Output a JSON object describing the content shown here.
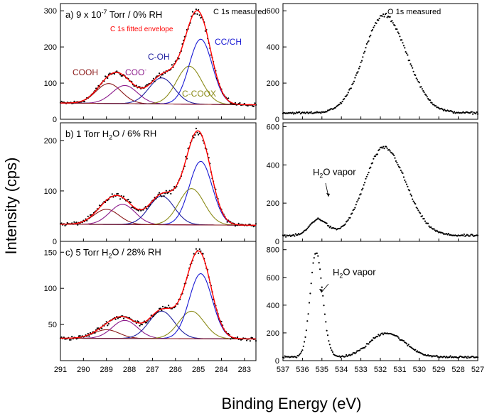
{
  "figure": {
    "xlabel": "Binding Energy (eV)",
    "ylabel": "Intensity (cps)"
  },
  "chart_data": [
    {
      "type": "line",
      "id": "c1s-a",
      "panel_label": "a) 9 x 10",
      "panel_label_sup": "-7",
      "panel_label_tail": " Torr / 0% RH",
      "xlim": [
        291,
        282.5
      ],
      "ylim": [
        0,
        320
      ],
      "yticks": [
        0,
        100,
        200,
        300
      ],
      "annotations": {
        "measured": "C 1s measured",
        "envelope": "C 1s fitted envelope"
      },
      "peaks": [
        {
          "name": "COOH",
          "center": 288.9,
          "height": 55,
          "sigma": 0.55,
          "color": "#8b1a1a"
        },
        {
          "name": "COO",
          "label_sup": "-",
          "center": 288.2,
          "height": 50,
          "sigma": 0.55,
          "color": "#8b1a8b"
        },
        {
          "name": "C-OH",
          "center": 286.6,
          "height": 72,
          "sigma": 0.55,
          "color": "#1f1f9f"
        },
        {
          "name": "C-COOX",
          "center": 285.4,
          "height": 105,
          "sigma": 0.55,
          "color": "#8c8c1a"
        },
        {
          "name": "CC/CH",
          "center": 284.9,
          "height": 180,
          "sigma": 0.5,
          "color": "#1a1ad4"
        }
      ],
      "baseline": {
        "left": 45,
        "right": 40
      },
      "envelope_color": "#ff0000"
    },
    {
      "type": "line",
      "id": "c1s-b",
      "panel_label": "b) 1 Torr H",
      "panel_label_sub": "2",
      "panel_label_tail": "O / 6% RH",
      "xlim": [
        291,
        282.5
      ],
      "ylim": [
        0,
        235
      ],
      "yticks": [
        0,
        100,
        200
      ],
      "peaks": [
        {
          "name": "COOH",
          "center": 289.0,
          "height": 30,
          "sigma": 0.55,
          "color": "#8b1a1a"
        },
        {
          "name": "COO",
          "center": 288.3,
          "height": 40,
          "sigma": 0.55,
          "color": "#8b1a8b"
        },
        {
          "name": "C-OH",
          "center": 286.6,
          "height": 57,
          "sigma": 0.55,
          "color": "#1f1f9f"
        },
        {
          "name": "C-COOX",
          "center": 285.3,
          "height": 72,
          "sigma": 0.55,
          "color": "#8c8c1a"
        },
        {
          "name": "CC/CH",
          "center": 284.9,
          "height": 126,
          "sigma": 0.5,
          "color": "#1a1ad4"
        }
      ],
      "baseline": {
        "left": 34,
        "right": 32
      },
      "envelope_color": "#ff0000"
    },
    {
      "type": "line",
      "id": "c1s-c",
      "panel_label": "c) 5 Torr H",
      "panel_label_sub": "2",
      "panel_label_tail": "O / 28% RH",
      "xlim": [
        291,
        282.5
      ],
      "ylim": [
        0,
        165
      ],
      "yticks": [
        50,
        100,
        150
      ],
      "xticks": [
        291,
        290,
        289,
        288,
        287,
        286,
        285,
        284,
        283
      ],
      "peaks": [
        {
          "name": "COOH",
          "center": 289.0,
          "height": 12,
          "sigma": 0.55,
          "color": "#8b1a1a"
        },
        {
          "name": "COO",
          "center": 288.2,
          "height": 25,
          "sigma": 0.55,
          "color": "#8b1a8b"
        },
        {
          "name": "C-OH",
          "center": 286.6,
          "height": 38,
          "sigma": 0.55,
          "color": "#1f1f9f"
        },
        {
          "name": "C-COOX",
          "center": 285.3,
          "height": 38,
          "sigma": 0.55,
          "color": "#8c8c1a"
        },
        {
          "name": "CC/CH",
          "center": 284.9,
          "height": 90,
          "sigma": 0.5,
          "color": "#1a1ad4"
        }
      ],
      "baseline": {
        "left": 31,
        "right": 30
      },
      "envelope_color": "#ff0000"
    },
    {
      "type": "scatter",
      "id": "o1s-a",
      "xlim": [
        537,
        527
      ],
      "ylim": [
        0,
        640
      ],
      "yticks": [
        0,
        200,
        400,
        600
      ],
      "annotations": {
        "measured": "O 1s measured"
      },
      "components": [
        {
          "center": 531.8,
          "height": 540,
          "sigma": 1.1
        }
      ],
      "baseline": 35
    },
    {
      "type": "scatter",
      "id": "o1s-b",
      "xlim": [
        537,
        527
      ],
      "ylim": [
        0,
        620
      ],
      "yticks": [
        0,
        200,
        400,
        600
      ],
      "annotations": {
        "vapor": "H",
        "vapor_sub": "2",
        "vapor_tail": "O vapor"
      },
      "components": [
        {
          "center": 535.2,
          "height": 85,
          "sigma": 0.45
        },
        {
          "center": 531.8,
          "height": 460,
          "sigma": 1.05
        }
      ],
      "baseline": 30
    },
    {
      "type": "scatter",
      "id": "o1s-c",
      "xlim": [
        537,
        527
      ],
      "ylim": [
        0,
        860
      ],
      "yticks": [
        0,
        200,
        400,
        600,
        800
      ],
      "xticks": [
        537,
        536,
        535,
        534,
        533,
        532,
        531,
        530,
        529,
        528,
        527
      ],
      "annotations": {
        "vapor": "H",
        "vapor_sub": "2",
        "vapor_tail": "O vapor"
      },
      "components": [
        {
          "center": 535.3,
          "height": 760,
          "sigma": 0.32
        },
        {
          "center": 531.7,
          "height": 175,
          "sigma": 0.9
        }
      ],
      "baseline": 25
    }
  ]
}
